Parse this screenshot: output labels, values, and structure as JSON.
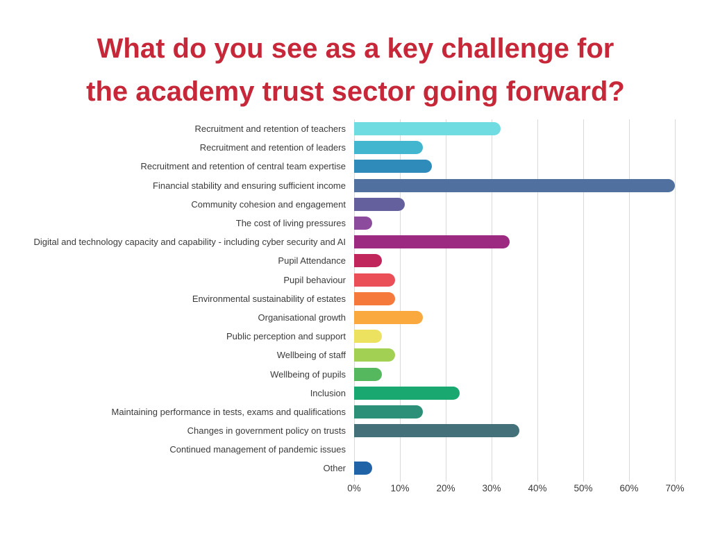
{
  "chart": {
    "title_line1": "What do you see as a key challenge for",
    "title_line2": "the academy trust sector going forward?",
    "title_color": "#c62839"
  },
  "chart_data": {
    "type": "bar",
    "orientation": "horizontal",
    "title": "What do you see as a key challenge for the academy trust sector going forward?",
    "xlabel": "",
    "ylabel": "",
    "xlim": [
      0,
      70
    ],
    "x_tick_values": [
      0,
      10,
      20,
      30,
      40,
      50,
      60,
      70
    ],
    "x_tick_labels": [
      "0%",
      "10%",
      "20%",
      "30%",
      "40%",
      "50%",
      "60%",
      "70%"
    ],
    "grid": "vertical",
    "legend_position": "none",
    "gridline_color": "#d9d9d9",
    "categories": [
      "Recruitment and retention of teachers",
      "Recruitment and retention of leaders",
      "Recruitment and retention of central team expertise",
      "Financial stability and ensuring sufficient income",
      "Community cohesion and engagement",
      "The cost of living pressures",
      "Digital and technology capacity and capability - including cyber security and AI",
      "Pupil Attendance",
      "Pupil behaviour",
      "Environmental sustainability of estates",
      "Organisational growth",
      "Public perception and support",
      "Wellbeing of staff",
      "Wellbeing of pupils",
      "Inclusion",
      "Maintaining performance in tests, exams and qualifications",
      "Changes in government policy on trusts",
      "Continued management of pandemic issues",
      "Other"
    ],
    "values": [
      32,
      15,
      17,
      70,
      11,
      4,
      34,
      6,
      9,
      9,
      15,
      6,
      9,
      6,
      23,
      15,
      36,
      0,
      4
    ],
    "unit": "%",
    "bar_colors": [
      "#6edce1",
      "#41b6ce",
      "#2f8cba",
      "#50719f",
      "#64609e",
      "#8d4b9d",
      "#9c2a80",
      "#c0265c",
      "#ea4e57",
      "#f5793a",
      "#f9a93d",
      "#ece25f",
      "#a1d053",
      "#55b85e",
      "#19a870",
      "#2b9077",
      "#44707a",
      "#9e9e9e",
      "#2063a6"
    ]
  }
}
